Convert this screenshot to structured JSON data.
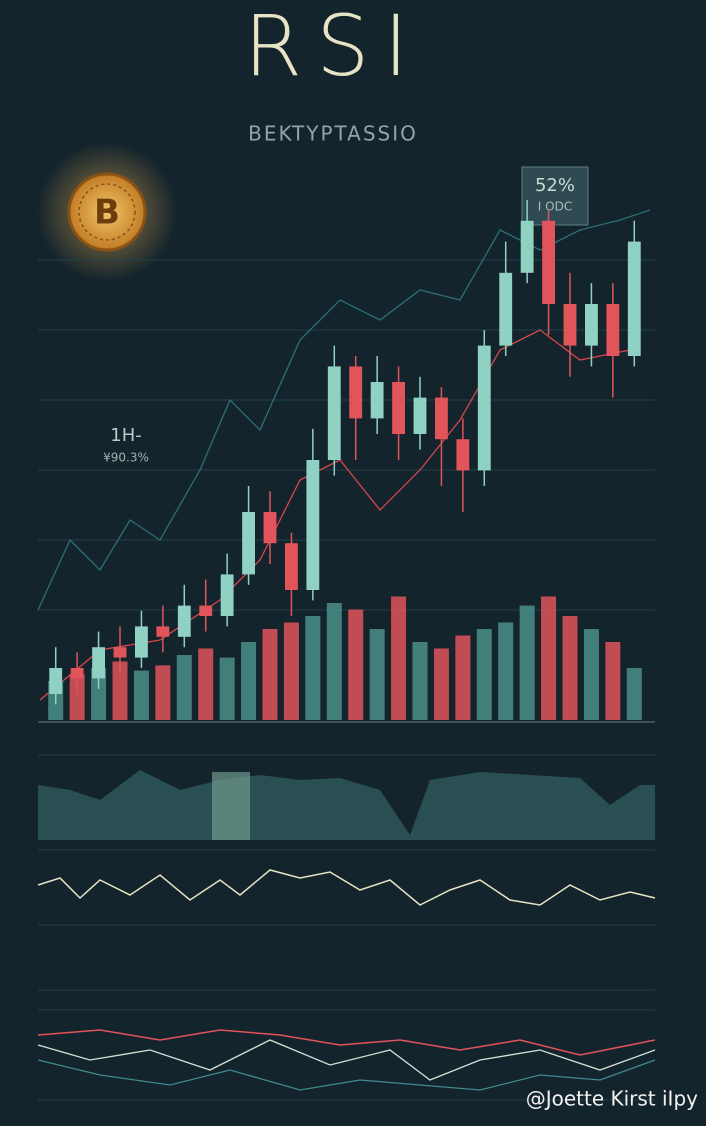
{
  "header": {
    "title": "RSI",
    "subtitle": "BEKTYPTASSIO"
  },
  "badge": {
    "value_text": "52%",
    "sub_text": "I ODC"
  },
  "side_label": {
    "line1": "1H-",
    "line2": "¥90.3%"
  },
  "main_chart": {
    "ylim": [
      0,
      100
    ],
    "volume_lim": [
      0,
      100
    ],
    "up_color": "#8fd1c3",
    "down_color": "#e0545a",
    "candles": [
      [
        5,
        10,
        14,
        3
      ],
      [
        10,
        8,
        13,
        5
      ],
      [
        8,
        14,
        17,
        6
      ],
      [
        14,
        12,
        18,
        9
      ],
      [
        12,
        18,
        21,
        10
      ],
      [
        18,
        16,
        22,
        13
      ],
      [
        16,
        22,
        26,
        14
      ],
      [
        22,
        20,
        27,
        17
      ],
      [
        20,
        28,
        32,
        18
      ],
      [
        28,
        40,
        45,
        26
      ],
      [
        40,
        34,
        44,
        30
      ],
      [
        34,
        25,
        36,
        20
      ],
      [
        25,
        50,
        56,
        23
      ],
      [
        50,
        68,
        72,
        47
      ],
      [
        68,
        58,
        70,
        50
      ],
      [
        58,
        65,
        70,
        55
      ],
      [
        65,
        55,
        68,
        50
      ],
      [
        55,
        62,
        66,
        52
      ],
      [
        62,
        54,
        64,
        45
      ],
      [
        54,
        48,
        58,
        40
      ],
      [
        48,
        72,
        75,
        45
      ],
      [
        72,
        86,
        92,
        70
      ],
      [
        86,
        96,
        100,
        84
      ],
      [
        96,
        80,
        98,
        74
      ],
      [
        80,
        72,
        86,
        66
      ],
      [
        72,
        80,
        84,
        68
      ],
      [
        80,
        70,
        84,
        62
      ],
      [
        70,
        92,
        96,
        68
      ]
    ],
    "volume": [
      30,
      35,
      40,
      45,
      38,
      42,
      50,
      55,
      48,
      60,
      70,
      75,
      80,
      90,
      85,
      70,
      95,
      60,
      55,
      65,
      70,
      75,
      88,
      95,
      80,
      70,
      60,
      40
    ]
  },
  "watermark": "@Joette Kirst iIpy"
}
